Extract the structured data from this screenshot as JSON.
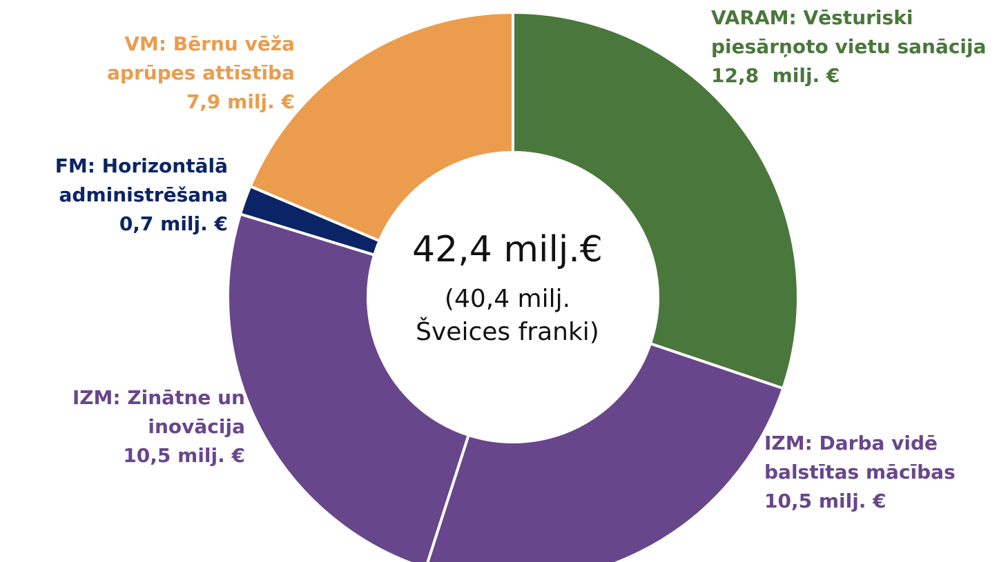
{
  "chart_data": {
    "type": "donut",
    "center_title": "42,4 milj.€",
    "center_subtitle": "(40,4 milj. Šveices franki)",
    "categories": [
      "VARAM: Vēsturiski piesārņoto vietu sanācija",
      "IZM: Darba vidē balstītas mācības",
      "IZM: Zinātne un inovācija",
      "FM: Horizontālā administrēšana",
      "VM: Bērnu vēža aprūpes attīstība"
    ],
    "values": [
      12.8,
      10.5,
      10.5,
      0.7,
      7.9
    ],
    "value_labels": [
      "12,8  milj. €",
      "10,5 milj. €",
      "10,5 milj. €",
      "0,7 milj. €",
      "7,9 milj. €"
    ],
    "colors": [
      "#4a773c",
      "#68468b",
      "#68468b",
      "#0b2466",
      "#eb9c4d"
    ]
  }
}
